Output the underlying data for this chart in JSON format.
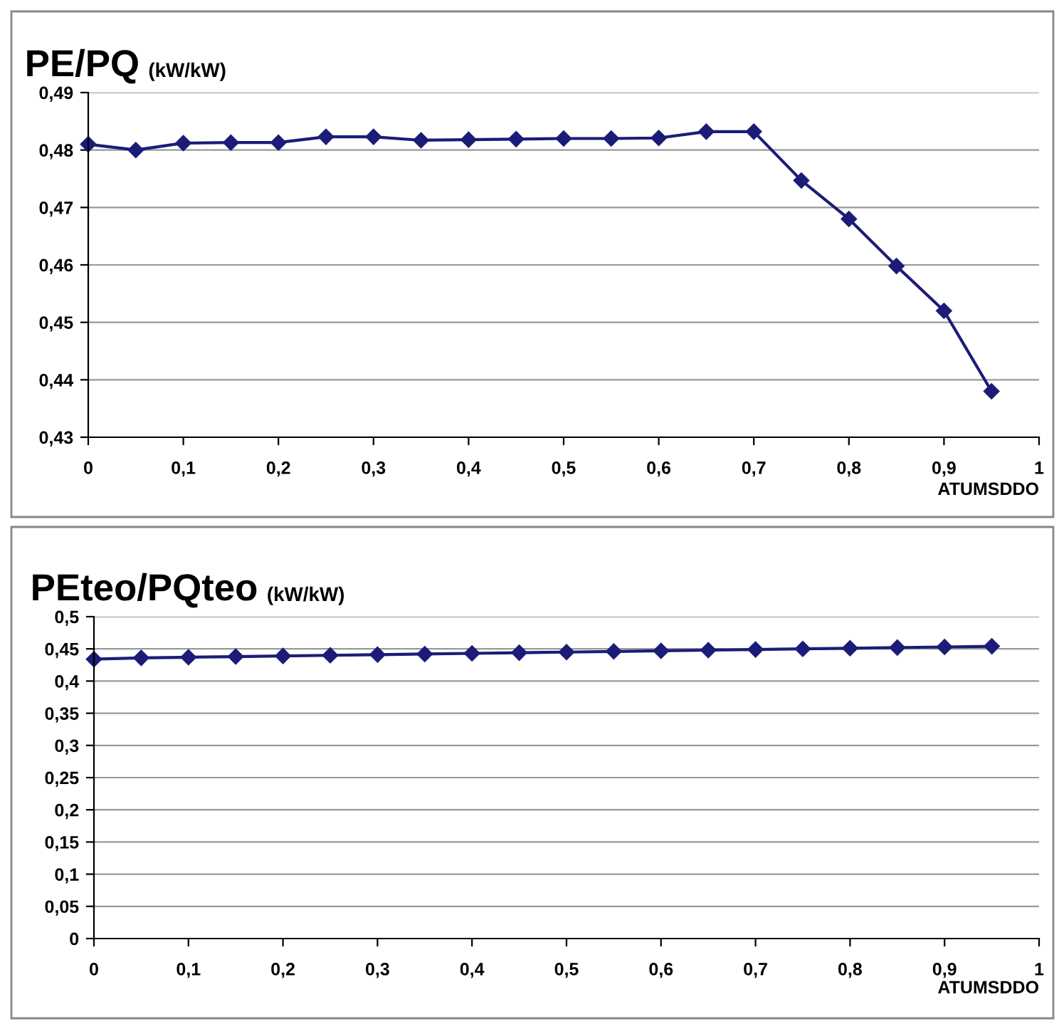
{
  "chart_data": [
    {
      "type": "line",
      "title": "PE/PQ",
      "ylabel": "(kW/kW)",
      "xlabel": "ATUMSDDO",
      "x": [
        0,
        0.05,
        0.1,
        0.15,
        0.2,
        0.25,
        0.3,
        0.35,
        0.4,
        0.45,
        0.5,
        0.55,
        0.6,
        0.65,
        0.7,
        0.75,
        0.8,
        0.85,
        0.9,
        0.95
      ],
      "series": [
        {
          "color": "#1c1c78",
          "values": [
            0.481,
            0.48,
            0.4812,
            0.4813,
            0.4813,
            0.4823,
            0.4823,
            0.4817,
            0.4818,
            0.4819,
            0.482,
            0.482,
            0.4821,
            0.4832,
            0.4832,
            0.4747,
            0.468,
            0.4598,
            0.452,
            0.438
          ]
        }
      ],
      "xlim": [
        0,
        1
      ],
      "xticks": [
        0,
        {
          "value": 0.1,
          "label": "0,1"
        },
        {
          "value": 0.2,
          "label": "0,2"
        },
        {
          "value": 0.3,
          "label": "0,3"
        },
        {
          "value": 0.4,
          "label": "0,4"
        },
        {
          "value": 0.5,
          "label": "0,5"
        },
        {
          "value": 0.6,
          "label": "0,6"
        },
        {
          "value": 0.7,
          "label": "0,7"
        },
        {
          "value": 0.8,
          "label": "0,8"
        },
        {
          "value": 0.9,
          "label": "0,9"
        },
        1
      ],
      "ylim": [
        0.43,
        0.49
      ],
      "yticks": [
        {
          "value": 0.43,
          "label": "0,43"
        },
        {
          "value": 0.44,
          "label": "0,44"
        },
        {
          "value": 0.45,
          "label": "0,45"
        },
        {
          "value": 0.46,
          "label": "0,46"
        },
        {
          "value": 0.47,
          "label": "0,47"
        },
        {
          "value": 0.48,
          "label": "0,48"
        },
        {
          "value": 0.49,
          "label": "0,49"
        }
      ],
      "grid": "y",
      "marker": "diamond",
      "line_style": "solid"
    },
    {
      "type": "line",
      "title": "PEteo/PQteo",
      "ylabel": "(kW/kW)",
      "xlabel": "ATUMSDDO",
      "x": [
        0,
        0.05,
        0.1,
        0.15,
        0.2,
        0.25,
        0.3,
        0.35,
        0.4,
        0.45,
        0.5,
        0.55,
        0.6,
        0.65,
        0.7,
        0.75,
        0.8,
        0.85,
        0.9,
        0.95
      ],
      "series": [
        {
          "color": "#1c1c78",
          "values": [
            0.434,
            0.436,
            0.437,
            0.438,
            0.439,
            0.44,
            0.441,
            0.442,
            0.443,
            0.444,
            0.445,
            0.446,
            0.447,
            0.448,
            0.449,
            0.45,
            0.451,
            0.452,
            0.453,
            0.454
          ]
        }
      ],
      "xlim": [
        0,
        1
      ],
      "xticks": [
        0,
        {
          "value": 0.1,
          "label": "0,1"
        },
        {
          "value": 0.2,
          "label": "0,2"
        },
        {
          "value": 0.3,
          "label": "0,3"
        },
        {
          "value": 0.4,
          "label": "0,4"
        },
        {
          "value": 0.5,
          "label": "0,5"
        },
        {
          "value": 0.6,
          "label": "0,6"
        },
        {
          "value": 0.7,
          "label": "0,7"
        },
        {
          "value": 0.8,
          "label": "0,8"
        },
        {
          "value": 0.9,
          "label": "0,9"
        },
        1
      ],
      "ylim": [
        0,
        0.5
      ],
      "yticks": [
        0,
        {
          "value": 0.05,
          "label": "0,05"
        },
        {
          "value": 0.1,
          "label": "0,1"
        },
        {
          "value": 0.15,
          "label": "0,15"
        },
        {
          "value": 0.2,
          "label": "0,2"
        },
        {
          "value": 0.25,
          "label": "0,25"
        },
        {
          "value": 0.3,
          "label": "0,3"
        },
        {
          "value": 0.35,
          "label": "0,35"
        },
        {
          "value": 0.4,
          "label": "0,4"
        },
        {
          "value": 0.45,
          "label": "0,45"
        },
        {
          "value": 0.5,
          "label": "0,5"
        }
      ],
      "grid": "y",
      "marker": "diamond",
      "line_style": "solid"
    }
  ]
}
